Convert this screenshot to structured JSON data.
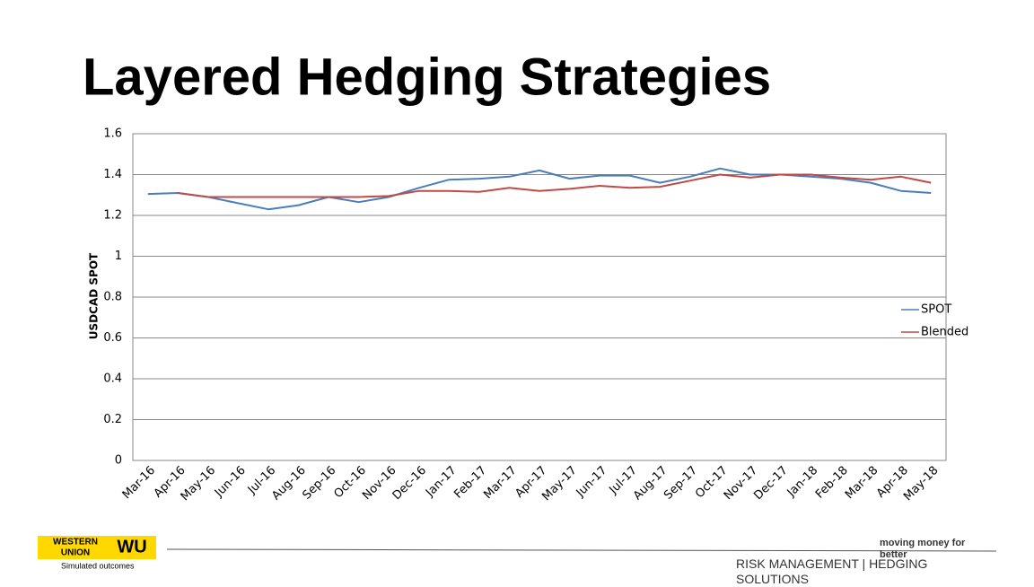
{
  "chart_data": {
    "type": "line",
    "title": "Layered Hedging Strategies",
    "y_label": "USDCAD SPOT",
    "categories": [
      "Mar-16",
      "Apr-16",
      "May-16",
      "Jun-16",
      "Jul-16",
      "Aug-16",
      "Sep-16",
      "Oct-16",
      "Nov-16",
      "Dec-16",
      "Jan-17",
      "Feb-17",
      "Mar-17",
      "Apr-17",
      "May-17",
      "Jun-17",
      "Jul-17",
      "Aug-17",
      "Sep-17",
      "Oct-17",
      "Nov-17",
      "Dec-17",
      "Jan-18",
      "Feb-18",
      "Mar-18",
      "Apr-18",
      "May-18"
    ],
    "series": [
      {
        "name": "SPOT",
        "color": "#4a7ebb",
        "values": [
          1.305,
          1.31,
          1.29,
          1.26,
          1.23,
          1.25,
          1.29,
          1.265,
          1.29,
          1.335,
          1.375,
          1.38,
          1.39,
          1.42,
          1.38,
          1.395,
          1.395,
          1.36,
          1.39,
          1.43,
          1.4,
          1.4,
          1.39,
          1.38,
          1.36,
          1.32,
          1.31
        ]
      },
      {
        "name": "Blended",
        "color": "#be4b48",
        "values": [
          null,
          1.31,
          1.29,
          1.29,
          1.29,
          1.29,
          1.29,
          1.29,
          1.295,
          1.32,
          1.32,
          1.315,
          1.335,
          1.32,
          1.33,
          1.345,
          1.335,
          1.34,
          1.37,
          1.4,
          1.385,
          1.4,
          1.4,
          1.385,
          1.375,
          1.39,
          1.36
        ]
      }
    ],
    "ylim": [
      0,
      1.6
    ],
    "yticks": [
      0,
      0.2,
      0.4,
      0.6,
      0.8,
      1,
      1.2,
      1.4,
      1.6
    ],
    "grid": true,
    "legend": "right"
  },
  "footer": {
    "logo_top": "WESTERN",
    "logo_bottom": "UNION",
    "logo_mark": "WU",
    "note": "Simulated outcomes",
    "tagline": "moving money for better",
    "section": "RISK MANAGEMENT | HEDGING SOLUTIONS"
  }
}
